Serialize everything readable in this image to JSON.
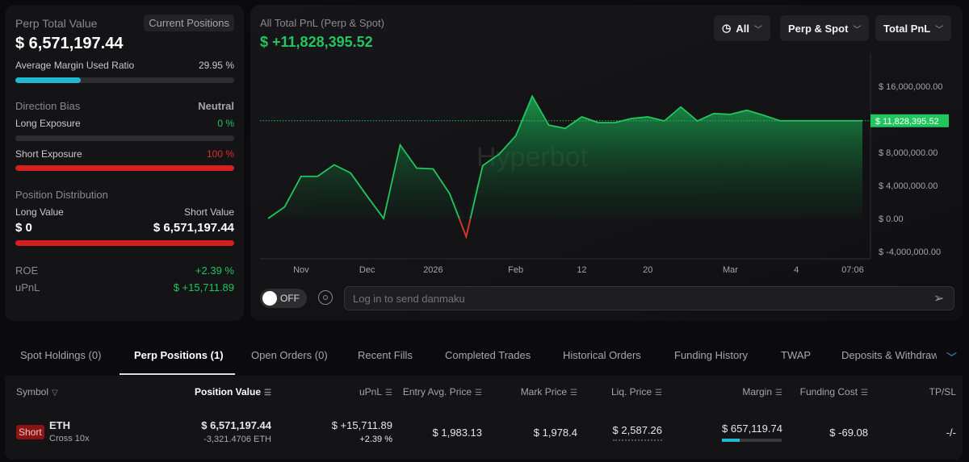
{
  "summary": {
    "title": "Perp Total Value",
    "current_positions_label": "Current Positions",
    "total_value": "$ 6,571,197.44",
    "margin_ratio_label": "Average Margin Used Ratio",
    "margin_ratio_value": "29.95 %",
    "margin_ratio_fraction": 0.2995,
    "direction_bias_label": "Direction Bias",
    "direction_bias_value": "Neutral",
    "long_exposure_label": "Long Exposure",
    "long_exposure_value": "0 %",
    "long_exposure_fraction": 0,
    "short_exposure_label": "Short Exposure",
    "short_exposure_value": "100 %",
    "short_exposure_fraction": 1,
    "distribution_label": "Position Distribution",
    "long_value_label": "Long Value",
    "short_value_label": "Short Value",
    "long_value": "$ 0",
    "short_value": "$ 6,571,197.44",
    "short_fraction": 1,
    "roe_label": "ROE",
    "roe_value": "+2.39 %",
    "upnl_label": "uPnL",
    "upnl_value": "$ +15,711.89"
  },
  "chart_header": {
    "title": "All Total PnL (Perp & Spot)",
    "value": "$ +11,828,395.52",
    "range_dropdown": "All",
    "scope_dropdown": "Perp & Spot",
    "metric_dropdown": "Total PnL",
    "watermark": "Hyperbot"
  },
  "chart_data": {
    "type": "area",
    "ylim": [
      -4000000,
      19000000
    ],
    "y_ticks": [
      "$ 16,000,000.00",
      "$ 8,000,000.00",
      "$ 4,000,000.00",
      "$ 0.00",
      "$ -4,000,000.00"
    ],
    "y_tick_values": [
      16000000,
      8000000,
      4000000,
      0,
      -4000000
    ],
    "x_labels": [
      "",
      "",
      "Nov",
      "",
      "",
      "",
      "Dec",
      "",
      "",
      "",
      "2026",
      "",
      "",
      "",
      "",
      "Feb",
      "",
      "",
      "",
      "12",
      "",
      "",
      "",
      "20",
      "",
      "",
      "",
      "",
      "Mar",
      "",
      "",
      "",
      "4",
      "",
      "",
      "",
      "07:06"
    ],
    "values": [
      0,
      1400000,
      5100000,
      5100000,
      6500000,
      5500000,
      2700000,
      0,
      8900000,
      6100000,
      6000000,
      3000000,
      -2200000,
      6400000,
      7800000,
      10000000,
      14800000,
      11300000,
      10900000,
      12300000,
      11600000,
      11600000,
      12100000,
      12300000,
      11800000,
      13500000,
      11800000,
      12700000,
      12600000,
      13100000,
      12500000,
      11828395.52,
      11828395.52,
      11828395.52,
      11828395.52,
      11828395.52,
      11828395.52
    ],
    "current_label": "$ 11,828,395.52",
    "current_value": 11828395.52,
    "colors": {
      "positive": "#22c55e",
      "negative": "#e02b2b"
    }
  },
  "danmaku": {
    "toggle": "OFF",
    "placeholder": "Log in to send danmaku"
  },
  "tabs": [
    "Spot Holdings (0)",
    "Perp Positions (1)",
    "Open Orders (0)",
    "Recent Fills",
    "Completed Trades",
    "Historical Orders",
    "Funding History",
    "TWAP",
    "Deposits & Withdraw"
  ],
  "table": {
    "headers": [
      "Symbol",
      "Position Value",
      "uPnL",
      "Entry Avg. Price",
      "Mark Price",
      "Liq. Price",
      "Margin",
      "Funding Cost",
      "TP/SL"
    ],
    "rows": [
      {
        "side": "Short",
        "symbol": "ETH",
        "leverage": "Cross 10x",
        "position_value": "$ 6,571,197.44",
        "size": "-3,321.4706 ETH",
        "upnl": "$ +15,711.89",
        "upnl_pct": "+2.39 %",
        "entry": "$ 1,983.13",
        "mark": "$ 1,978.4",
        "liq": "$ 2,587.26",
        "margin": "$ 657,119.74",
        "margin_fraction": 0.2995,
        "funding": "$ -69.08",
        "tpsl": "-/-"
      }
    ]
  }
}
